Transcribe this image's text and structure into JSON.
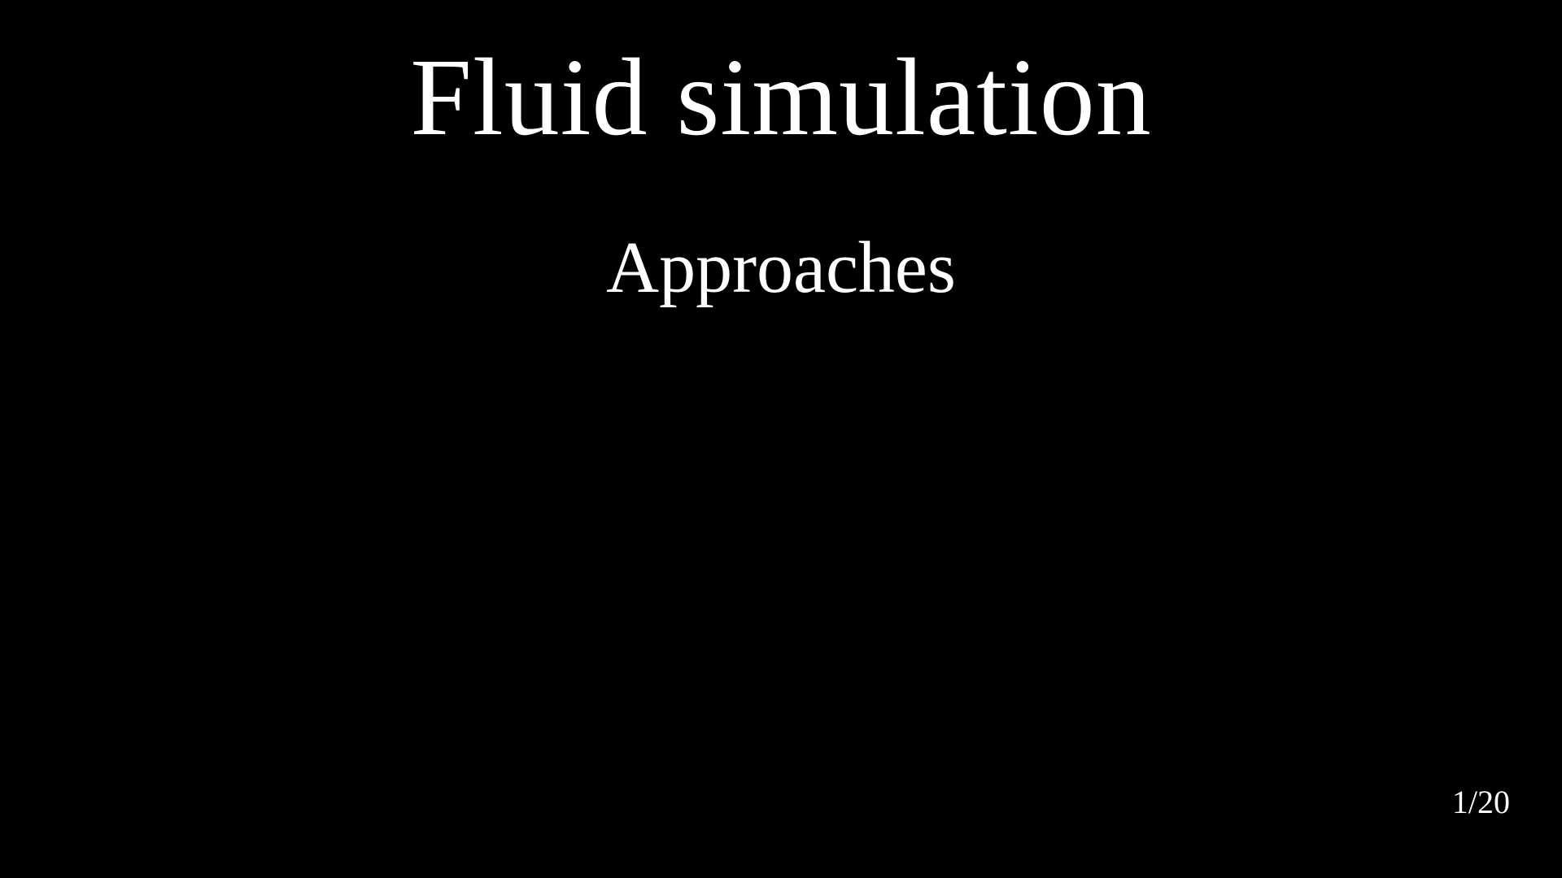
{
  "slide": {
    "title": "Fluid simulation",
    "subtitle": "Approaches",
    "page_number": "1/20"
  },
  "colors": {
    "background": "#000000",
    "text": "#ffffff"
  }
}
